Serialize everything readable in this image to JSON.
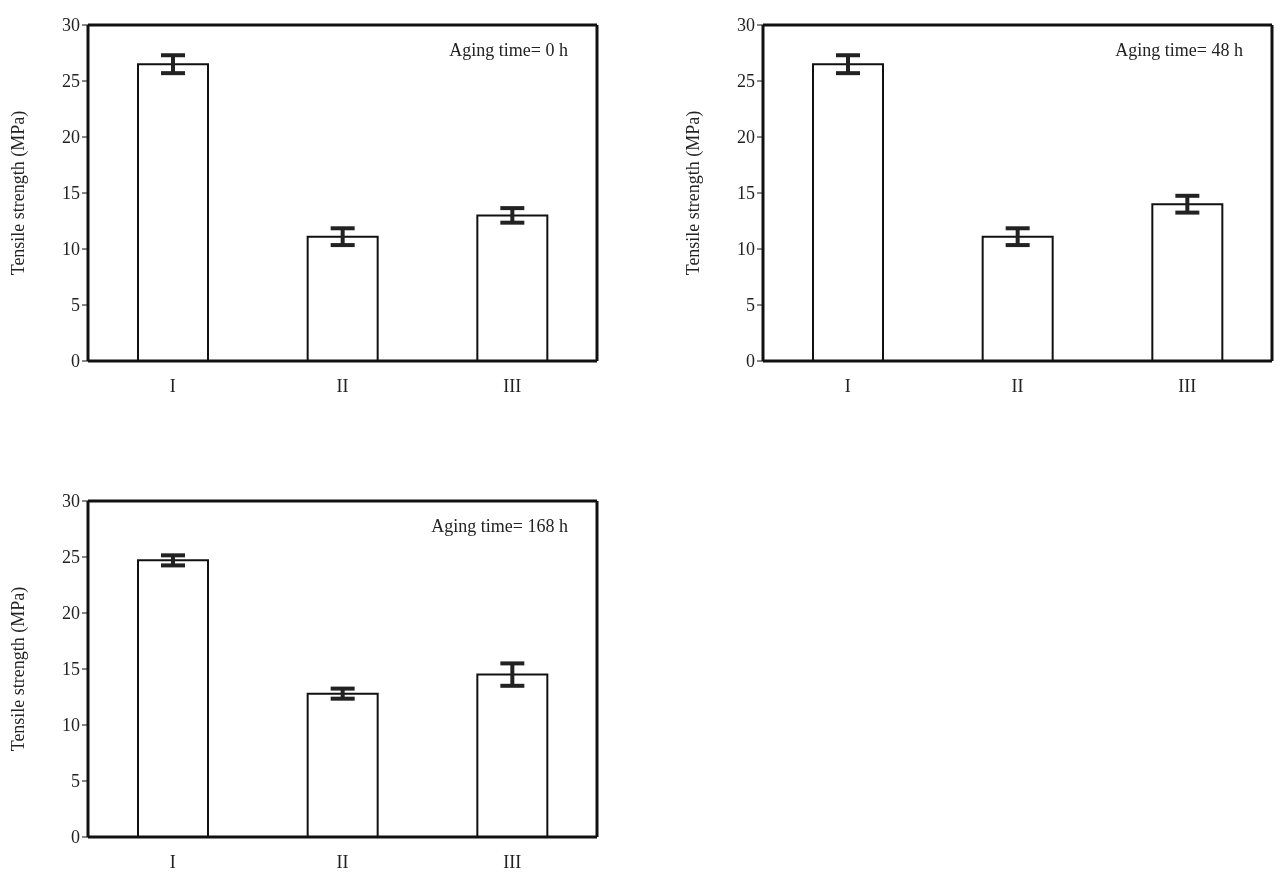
{
  "chart_data": [
    {
      "type": "bar",
      "ylabel": "Tensile strength (MPa)",
      "categories": [
        "I",
        "II",
        "III"
      ],
      "values": [
        26.5,
        11.1,
        13.0
      ],
      "errors": [
        0.8,
        0.75,
        0.65
      ],
      "color": "#ffffff",
      "ylim": [
        0,
        30
      ],
      "yticks": [
        0,
        5,
        10,
        15,
        20,
        25,
        30
      ],
      "annotations": [
        "Aging time= 0 h"
      ]
    },
    {
      "type": "bar",
      "ylabel": "Tensile strength (MPa)",
      "categories": [
        "I",
        "II",
        "III"
      ],
      "values": [
        26.5,
        11.1,
        14.0
      ],
      "errors": [
        0.8,
        0.75,
        0.75
      ],
      "color": "#ffffff",
      "ylim": [
        0,
        30
      ],
      "yticks": [
        0,
        5,
        10,
        15,
        20,
        25,
        30
      ],
      "annotations": [
        "Aging time= 48 h"
      ]
    },
    {
      "type": "bar",
      "ylabel": "Tensile strength (MPa)",
      "categories": [
        "I",
        "II",
        "III"
      ],
      "values": [
        24.7,
        12.8,
        14.5
      ],
      "errors": [
        0.45,
        0.45,
        1.0
      ],
      "color": "#ffffff",
      "ylim": [
        0,
        30
      ],
      "yticks": [
        0,
        5,
        10,
        15,
        20,
        25,
        30
      ],
      "annotations": [
        "Aging time= 168 h"
      ]
    }
  ]
}
